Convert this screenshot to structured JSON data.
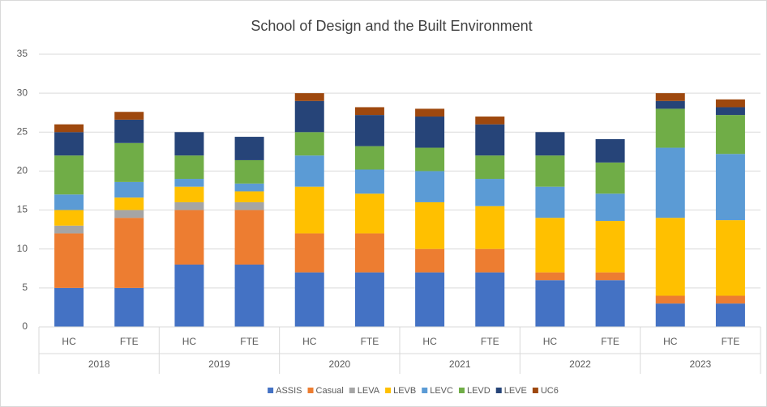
{
  "chart_data": {
    "type": "stacked_bar",
    "title": "School of Design and the Built Environment",
    "categories": [
      "HC",
      "FTE",
      "HC",
      "FTE",
      "HC",
      "FTE",
      "HC",
      "FTE",
      "HC",
      "FTE",
      "HC",
      "FTE"
    ],
    "groups": [
      "2018",
      "2019",
      "2020",
      "2021",
      "2022",
      "2023"
    ],
    "series": [
      {
        "name": "ASSIS",
        "color": "#4472c4",
        "values": [
          5,
          5,
          8,
          8,
          7,
          7,
          7,
          7,
          6,
          6,
          3,
          3
        ]
      },
      {
        "name": "Casual",
        "color": "#ed7d31",
        "values": [
          7,
          9,
          7,
          7,
          5,
          5,
          3,
          3,
          1,
          1,
          1,
          1
        ]
      },
      {
        "name": "LEVA",
        "color": "#a5a5a5",
        "values": [
          1,
          1,
          1,
          1,
          0,
          0,
          0,
          0,
          0,
          0,
          0,
          0
        ]
      },
      {
        "name": "LEVB",
        "color": "#ffc000",
        "values": [
          2,
          1.6,
          2,
          1.4,
          6,
          5.1,
          6,
          5.5,
          7,
          6.6,
          10,
          9.7
        ]
      },
      {
        "name": "LEVC",
        "color": "#5b9bd5",
        "values": [
          2,
          2,
          1,
          1,
          4,
          3.1,
          4,
          3.5,
          4,
          3.5,
          9,
          8.5
        ]
      },
      {
        "name": "LEVD",
        "color": "#70ad47",
        "values": [
          5,
          5,
          3,
          3,
          3,
          3,
          3,
          3,
          4,
          4,
          5,
          5
        ]
      },
      {
        "name": "LEVE",
        "color": "#264478",
        "values": [
          3,
          3,
          3,
          3,
          4,
          4,
          4,
          4,
          3,
          3,
          1,
          1
        ]
      },
      {
        "name": "UC6",
        "color": "#9e480e",
        "values": [
          1,
          1,
          0,
          0,
          1,
          1,
          1,
          1,
          0,
          0,
          1,
          1
        ]
      }
    ],
    "ylim": [
      0,
      35
    ],
    "yticks": [
      0,
      5,
      10,
      15,
      20,
      25,
      30,
      35
    ],
    "grid": true,
    "legend": "bottom"
  }
}
